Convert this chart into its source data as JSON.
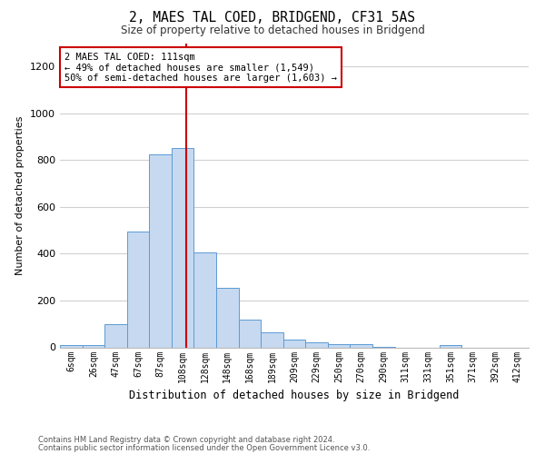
{
  "title": "2, MAES TAL COED, BRIDGEND, CF31 5AS",
  "subtitle": "Size of property relative to detached houses in Bridgend",
  "xlabel": "Distribution of detached houses by size in Bridgend",
  "ylabel": "Number of detached properties",
  "bar_color": "#c6d9f0",
  "bar_edge_color": "#5b9bd5",
  "categories": [
    "6sqm",
    "26sqm",
    "47sqm",
    "67sqm",
    "87sqm",
    "108sqm",
    "128sqm",
    "148sqm",
    "168sqm",
    "189sqm",
    "209sqm",
    "229sqm",
    "250sqm",
    "270sqm",
    "290sqm",
    "311sqm",
    "331sqm",
    "351sqm",
    "371sqm",
    "392sqm",
    "412sqm"
  ],
  "values": [
    10,
    10,
    100,
    495,
    825,
    850,
    405,
    255,
    120,
    65,
    32,
    20,
    15,
    14,
    2,
    0,
    0,
    10,
    0,
    0,
    0
  ],
  "vline_x": 5.15,
  "vline_color": "#cc0000",
  "annotation_text": "2 MAES TAL COED: 111sqm\n← 49% of detached houses are smaller (1,549)\n50% of semi-detached houses are larger (1,603) →",
  "annotation_box_color": "#ffffff",
  "annotation_box_edge": "#cc0000",
  "ylim": [
    0,
    1300
  ],
  "yticks": [
    0,
    200,
    400,
    600,
    800,
    1000,
    1200
  ],
  "footnote1": "Contains HM Land Registry data © Crown copyright and database right 2024.",
  "footnote2": "Contains public sector information licensed under the Open Government Licence v3.0.",
  "background_color": "#ffffff",
  "grid_color": "#d0d0d0"
}
